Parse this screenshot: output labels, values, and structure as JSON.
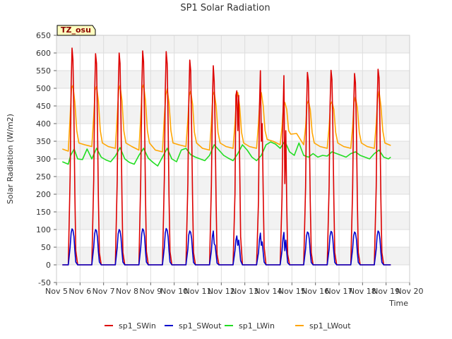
{
  "chart_data": {
    "type": "line",
    "title": "SP1 Solar Radiation",
    "xlabel": "Time",
    "ylabel": "Solar Radiation (W/m2)",
    "badge": "TZ_osu",
    "xlim": [
      5,
      20
    ],
    "ylim": [
      -50,
      650
    ],
    "x_ticks": [
      {
        "v": 5,
        "label": "Nov 5"
      },
      {
        "v": 6,
        "label": "Nov 6"
      },
      {
        "v": 7,
        "label": "Nov 7"
      },
      {
        "v": 8,
        "label": "Nov 8"
      },
      {
        "v": 9,
        "label": "Nov 9"
      },
      {
        "v": 10,
        "label": "Nov 10"
      },
      {
        "v": 11,
        "label": "Nov 11"
      },
      {
        "v": 12,
        "label": "Nov 12"
      },
      {
        "v": 13,
        "label": "Nov 13"
      },
      {
        "v": 14,
        "label": "Nov 14"
      },
      {
        "v": 15,
        "label": "Nov 15"
      },
      {
        "v": 16,
        "label": "Nov 16"
      },
      {
        "v": 17,
        "label": "Nov 17"
      },
      {
        "v": 18,
        "label": "Nov 18"
      },
      {
        "v": 19,
        "label": "Nov 19"
      },
      {
        "v": 20,
        "label": "Nov 20"
      }
    ],
    "y_ticks": [
      -50,
      0,
      50,
      100,
      150,
      200,
      250,
      300,
      350,
      400,
      450,
      500,
      550,
      600,
      650
    ],
    "grid": true,
    "legend_position": "bottom",
    "series": [
      {
        "name": "sp1_SWin",
        "color": "#dd0000",
        "x": [
          5.25,
          5.5,
          5.58,
          5.62,
          5.66,
          5.7,
          5.74,
          5.78,
          5.82,
          5.9,
          6.0,
          6.2,
          6.5,
          6.58,
          6.62,
          6.66,
          6.7,
          6.74,
          6.78,
          6.82,
          6.9,
          7.0,
          7.2,
          7.5,
          7.58,
          7.62,
          7.66,
          7.7,
          7.74,
          7.78,
          7.82,
          7.9,
          8.0,
          8.2,
          8.5,
          8.58,
          8.62,
          8.66,
          8.7,
          8.74,
          8.78,
          8.82,
          8.9,
          9.0,
          9.2,
          9.5,
          9.58,
          9.62,
          9.66,
          9.7,
          9.74,
          9.78,
          9.82,
          9.9,
          10.0,
          10.2,
          10.5,
          10.58,
          10.62,
          10.66,
          10.7,
          10.74,
          10.78,
          10.82,
          10.9,
          11.0,
          11.2,
          11.5,
          11.58,
          11.62,
          11.66,
          11.7,
          11.74,
          11.78,
          11.82,
          11.9,
          12.0,
          12.2,
          12.5,
          12.58,
          12.62,
          12.66,
          12.7,
          12.74,
          12.78,
          12.82,
          12.9,
          13.0,
          13.2,
          13.5,
          13.58,
          13.62,
          13.66,
          13.7,
          13.74,
          13.78,
          13.82,
          13.9,
          14.0,
          14.2,
          14.5,
          14.58,
          14.62,
          14.66,
          14.7,
          14.74,
          14.78,
          14.82,
          14.9,
          15.0,
          15.2,
          15.5,
          15.58,
          15.62,
          15.66,
          15.7,
          15.74,
          15.78,
          15.82,
          15.9,
          16.0,
          16.2,
          16.5,
          16.58,
          16.62,
          16.66,
          16.7,
          16.74,
          16.78,
          16.82,
          16.9,
          17.0,
          17.2,
          17.5,
          17.58,
          17.62,
          17.66,
          17.7,
          17.74,
          17.78,
          17.82,
          17.9,
          18.0,
          18.2,
          18.5,
          18.58,
          18.62,
          18.66,
          18.7,
          18.74,
          18.78,
          18.82,
          18.9,
          19.0,
          19.2
        ],
        "y": [
          0,
          0,
          250,
          500,
          614,
          580,
          420,
          200,
          40,
          0,
          0,
          0,
          0,
          240,
          480,
          598,
          570,
          400,
          190,
          35,
          0,
          0,
          0,
          0,
          240,
          480,
          600,
          570,
          410,
          190,
          35,
          0,
          0,
          0,
          0,
          245,
          490,
          606,
          575,
          410,
          195,
          38,
          0,
          0,
          0,
          0,
          245,
          490,
          604,
          570,
          410,
          195,
          38,
          0,
          0,
          0,
          0,
          230,
          460,
          580,
          550,
          390,
          185,
          35,
          0,
          0,
          0,
          0,
          225,
          450,
          564,
          520,
          380,
          175,
          30,
          0,
          0,
          0,
          0,
          200,
          480,
          493,
          380,
          480,
          300,
          80,
          0,
          0,
          0,
          0,
          180,
          440,
          550,
          350,
          400,
          200,
          50,
          0,
          0,
          0,
          0,
          190,
          420,
          536,
          230,
          380,
          170,
          30,
          0,
          0,
          0,
          0,
          220,
          440,
          545,
          520,
          380,
          180,
          35,
          0,
          0,
          0,
          0,
          220,
          450,
          551,
          525,
          390,
          185,
          35,
          0,
          0,
          0,
          0,
          215,
          440,
          542,
          515,
          380,
          180,
          35,
          0,
          0,
          0,
          0,
          220,
          450,
          554,
          530,
          390,
          185,
          35,
          0,
          0,
          0
        ]
      },
      {
        "name": "sp1_SWout",
        "color": "#0000cc",
        "x": [
          5.25,
          5.5,
          5.58,
          5.62,
          5.66,
          5.7,
          5.74,
          5.78,
          5.82,
          5.9,
          6.0,
          6.2,
          6.5,
          6.58,
          6.62,
          6.66,
          6.7,
          6.74,
          6.78,
          6.82,
          6.9,
          7.0,
          7.2,
          7.5,
          7.58,
          7.62,
          7.66,
          7.7,
          7.74,
          7.78,
          7.82,
          7.9,
          8.0,
          8.2,
          8.5,
          8.58,
          8.62,
          8.66,
          8.7,
          8.74,
          8.78,
          8.82,
          8.9,
          9.0,
          9.2,
          9.5,
          9.58,
          9.62,
          9.66,
          9.7,
          9.74,
          9.78,
          9.82,
          9.9,
          10.0,
          10.2,
          10.5,
          10.58,
          10.62,
          10.66,
          10.7,
          10.74,
          10.78,
          10.82,
          10.9,
          11.0,
          11.2,
          11.5,
          11.58,
          11.62,
          11.66,
          11.7,
          11.74,
          11.78,
          11.82,
          11.9,
          12.0,
          12.2,
          12.5,
          12.58,
          12.62,
          12.66,
          12.7,
          12.74,
          12.78,
          12.82,
          12.9,
          13.0,
          13.2,
          13.5,
          13.58,
          13.62,
          13.66,
          13.7,
          13.74,
          13.78,
          13.82,
          13.9,
          14.0,
          14.2,
          14.5,
          14.58,
          14.62,
          14.66,
          14.7,
          14.74,
          14.78,
          14.82,
          14.9,
          15.0,
          15.2,
          15.5,
          15.58,
          15.62,
          15.66,
          15.7,
          15.74,
          15.78,
          15.82,
          15.9,
          16.0,
          16.2,
          16.5,
          16.58,
          16.62,
          16.66,
          16.7,
          16.74,
          16.78,
          16.82,
          16.9,
          17.0,
          17.2,
          17.5,
          17.58,
          17.62,
          17.66,
          17.7,
          17.74,
          17.78,
          17.82,
          17.9,
          18.0,
          18.2,
          18.5,
          18.58,
          18.62,
          18.66,
          18.7,
          18.74,
          18.78,
          18.82,
          18.9,
          19.0,
          19.2
        ],
        "y": [
          0,
          0,
          50,
          90,
          102,
          98,
          80,
          40,
          8,
          0,
          0,
          0,
          0,
          50,
          88,
          100,
          96,
          78,
          38,
          8,
          0,
          0,
          0,
          0,
          50,
          88,
          100,
          96,
          78,
          38,
          8,
          0,
          0,
          0,
          0,
          50,
          88,
          102,
          98,
          80,
          40,
          8,
          0,
          0,
          0,
          0,
          50,
          90,
          103,
          98,
          80,
          40,
          8,
          0,
          0,
          0,
          0,
          45,
          85,
          96,
          92,
          75,
          36,
          7,
          0,
          0,
          0,
          0,
          40,
          80,
          96,
          60,
          55,
          30,
          5,
          0,
          0,
          0,
          0,
          40,
          70,
          82,
          55,
          70,
          45,
          12,
          0,
          0,
          0,
          0,
          35,
          70,
          90,
          55,
          65,
          35,
          8,
          0,
          0,
          0,
          0,
          40,
          75,
          92,
          40,
          70,
          35,
          6,
          0,
          0,
          0,
          0,
          45,
          82,
          93,
          90,
          72,
          35,
          7,
          0,
          0,
          0,
          0,
          45,
          82,
          95,
          92,
          72,
          35,
          7,
          0,
          0,
          0,
          0,
          45,
          82,
          93,
          90,
          72,
          35,
          7,
          0,
          0,
          0,
          0,
          45,
          82,
          96,
          92,
          72,
          35,
          7,
          0,
          0,
          0
        ]
      },
      {
        "name": "sp1_LWin",
        "color": "#22dd22",
        "x": [
          5.25,
          5.5,
          5.6,
          5.75,
          5.9,
          6.1,
          6.3,
          6.5,
          6.7,
          6.9,
          7.1,
          7.3,
          7.5,
          7.7,
          7.9,
          8.1,
          8.3,
          8.5,
          8.7,
          8.9,
          9.1,
          9.3,
          9.5,
          9.7,
          9.9,
          10.1,
          10.3,
          10.5,
          10.7,
          10.9,
          11.1,
          11.3,
          11.5,
          11.7,
          11.9,
          12.1,
          12.3,
          12.5,
          12.7,
          12.9,
          13.1,
          13.3,
          13.5,
          13.7,
          13.9,
          14.1,
          14.3,
          14.5,
          14.7,
          14.9,
          15.1,
          15.3,
          15.5,
          15.7,
          15.9,
          16.1,
          16.3,
          16.5,
          16.7,
          16.9,
          17.1,
          17.3,
          17.5,
          17.7,
          17.9,
          18.1,
          18.3,
          18.5,
          18.7,
          18.9,
          19.1,
          19.2
        ],
        "y": [
          292,
          285,
          310,
          328,
          300,
          298,
          328,
          300,
          330,
          305,
          297,
          292,
          308,
          332,
          300,
          290,
          285,
          310,
          330,
          302,
          290,
          280,
          305,
          330,
          300,
          292,
          325,
          330,
          312,
          305,
          300,
          295,
          310,
          340,
          325,
          310,
          302,
          295,
          315,
          340,
          325,
          305,
          295,
          310,
          340,
          348,
          342,
          330,
          350,
          320,
          310,
          345,
          310,
          305,
          315,
          305,
          310,
          308,
          320,
          315,
          310,
          305,
          315,
          320,
          310,
          305,
          300,
          315,
          325,
          305,
          300,
          305
        ]
      },
      {
        "name": "sp1_LWout",
        "color": "#ffa500",
        "x": [
          5.25,
          5.5,
          5.58,
          5.64,
          5.7,
          5.78,
          5.86,
          5.95,
          6.2,
          6.5,
          6.58,
          6.64,
          6.7,
          6.78,
          6.86,
          6.95,
          7.2,
          7.5,
          7.58,
          7.64,
          7.7,
          7.78,
          7.86,
          7.95,
          8.2,
          8.5,
          8.58,
          8.64,
          8.7,
          8.78,
          8.86,
          8.95,
          9.2,
          9.5,
          9.58,
          9.64,
          9.7,
          9.78,
          9.86,
          9.95,
          10.2,
          10.5,
          10.58,
          10.64,
          10.7,
          10.78,
          10.86,
          10.95,
          11.2,
          11.5,
          11.58,
          11.64,
          11.7,
          11.78,
          11.86,
          11.95,
          12.2,
          12.5,
          12.58,
          12.64,
          12.7,
          12.78,
          12.86,
          12.95,
          13.2,
          13.5,
          13.58,
          13.64,
          13.7,
          13.78,
          13.86,
          13.95,
          14.2,
          14.5,
          14.58,
          14.64,
          14.7,
          14.78,
          14.86,
          14.95,
          15.2,
          15.5,
          15.58,
          15.64,
          15.7,
          15.78,
          15.86,
          15.95,
          16.2,
          16.5,
          16.58,
          16.64,
          16.7,
          16.78,
          16.86,
          16.95,
          17.2,
          17.5,
          17.58,
          17.64,
          17.7,
          17.78,
          17.86,
          17.95,
          18.2,
          18.5,
          18.58,
          18.64,
          18.7,
          18.78,
          18.86,
          18.95,
          19.2
        ],
        "y": [
          328,
          322,
          420,
          500,
          508,
          460,
          380,
          345,
          340,
          335,
          420,
          495,
          505,
          465,
          380,
          345,
          335,
          330,
          420,
          495,
          508,
          465,
          380,
          345,
          335,
          325,
          420,
          500,
          510,
          465,
          380,
          345,
          325,
          320,
          420,
          480,
          498,
          460,
          380,
          345,
          340,
          335,
          410,
          480,
          492,
          455,
          375,
          345,
          330,
          325,
          400,
          480,
          490,
          450,
          375,
          345,
          335,
          330,
          400,
          470,
          488,
          450,
          375,
          345,
          335,
          330,
          400,
          470,
          488,
          450,
          380,
          355,
          350,
          340,
          390,
          450,
          460,
          440,
          380,
          370,
          372,
          340,
          390,
          455,
          465,
          440,
          375,
          345,
          335,
          330,
          390,
          455,
          462,
          440,
          375,
          345,
          335,
          330,
          390,
          460,
          475,
          445,
          375,
          345,
          335,
          330,
          400,
          470,
          492,
          450,
          380,
          345,
          338
        ]
      }
    ]
  }
}
